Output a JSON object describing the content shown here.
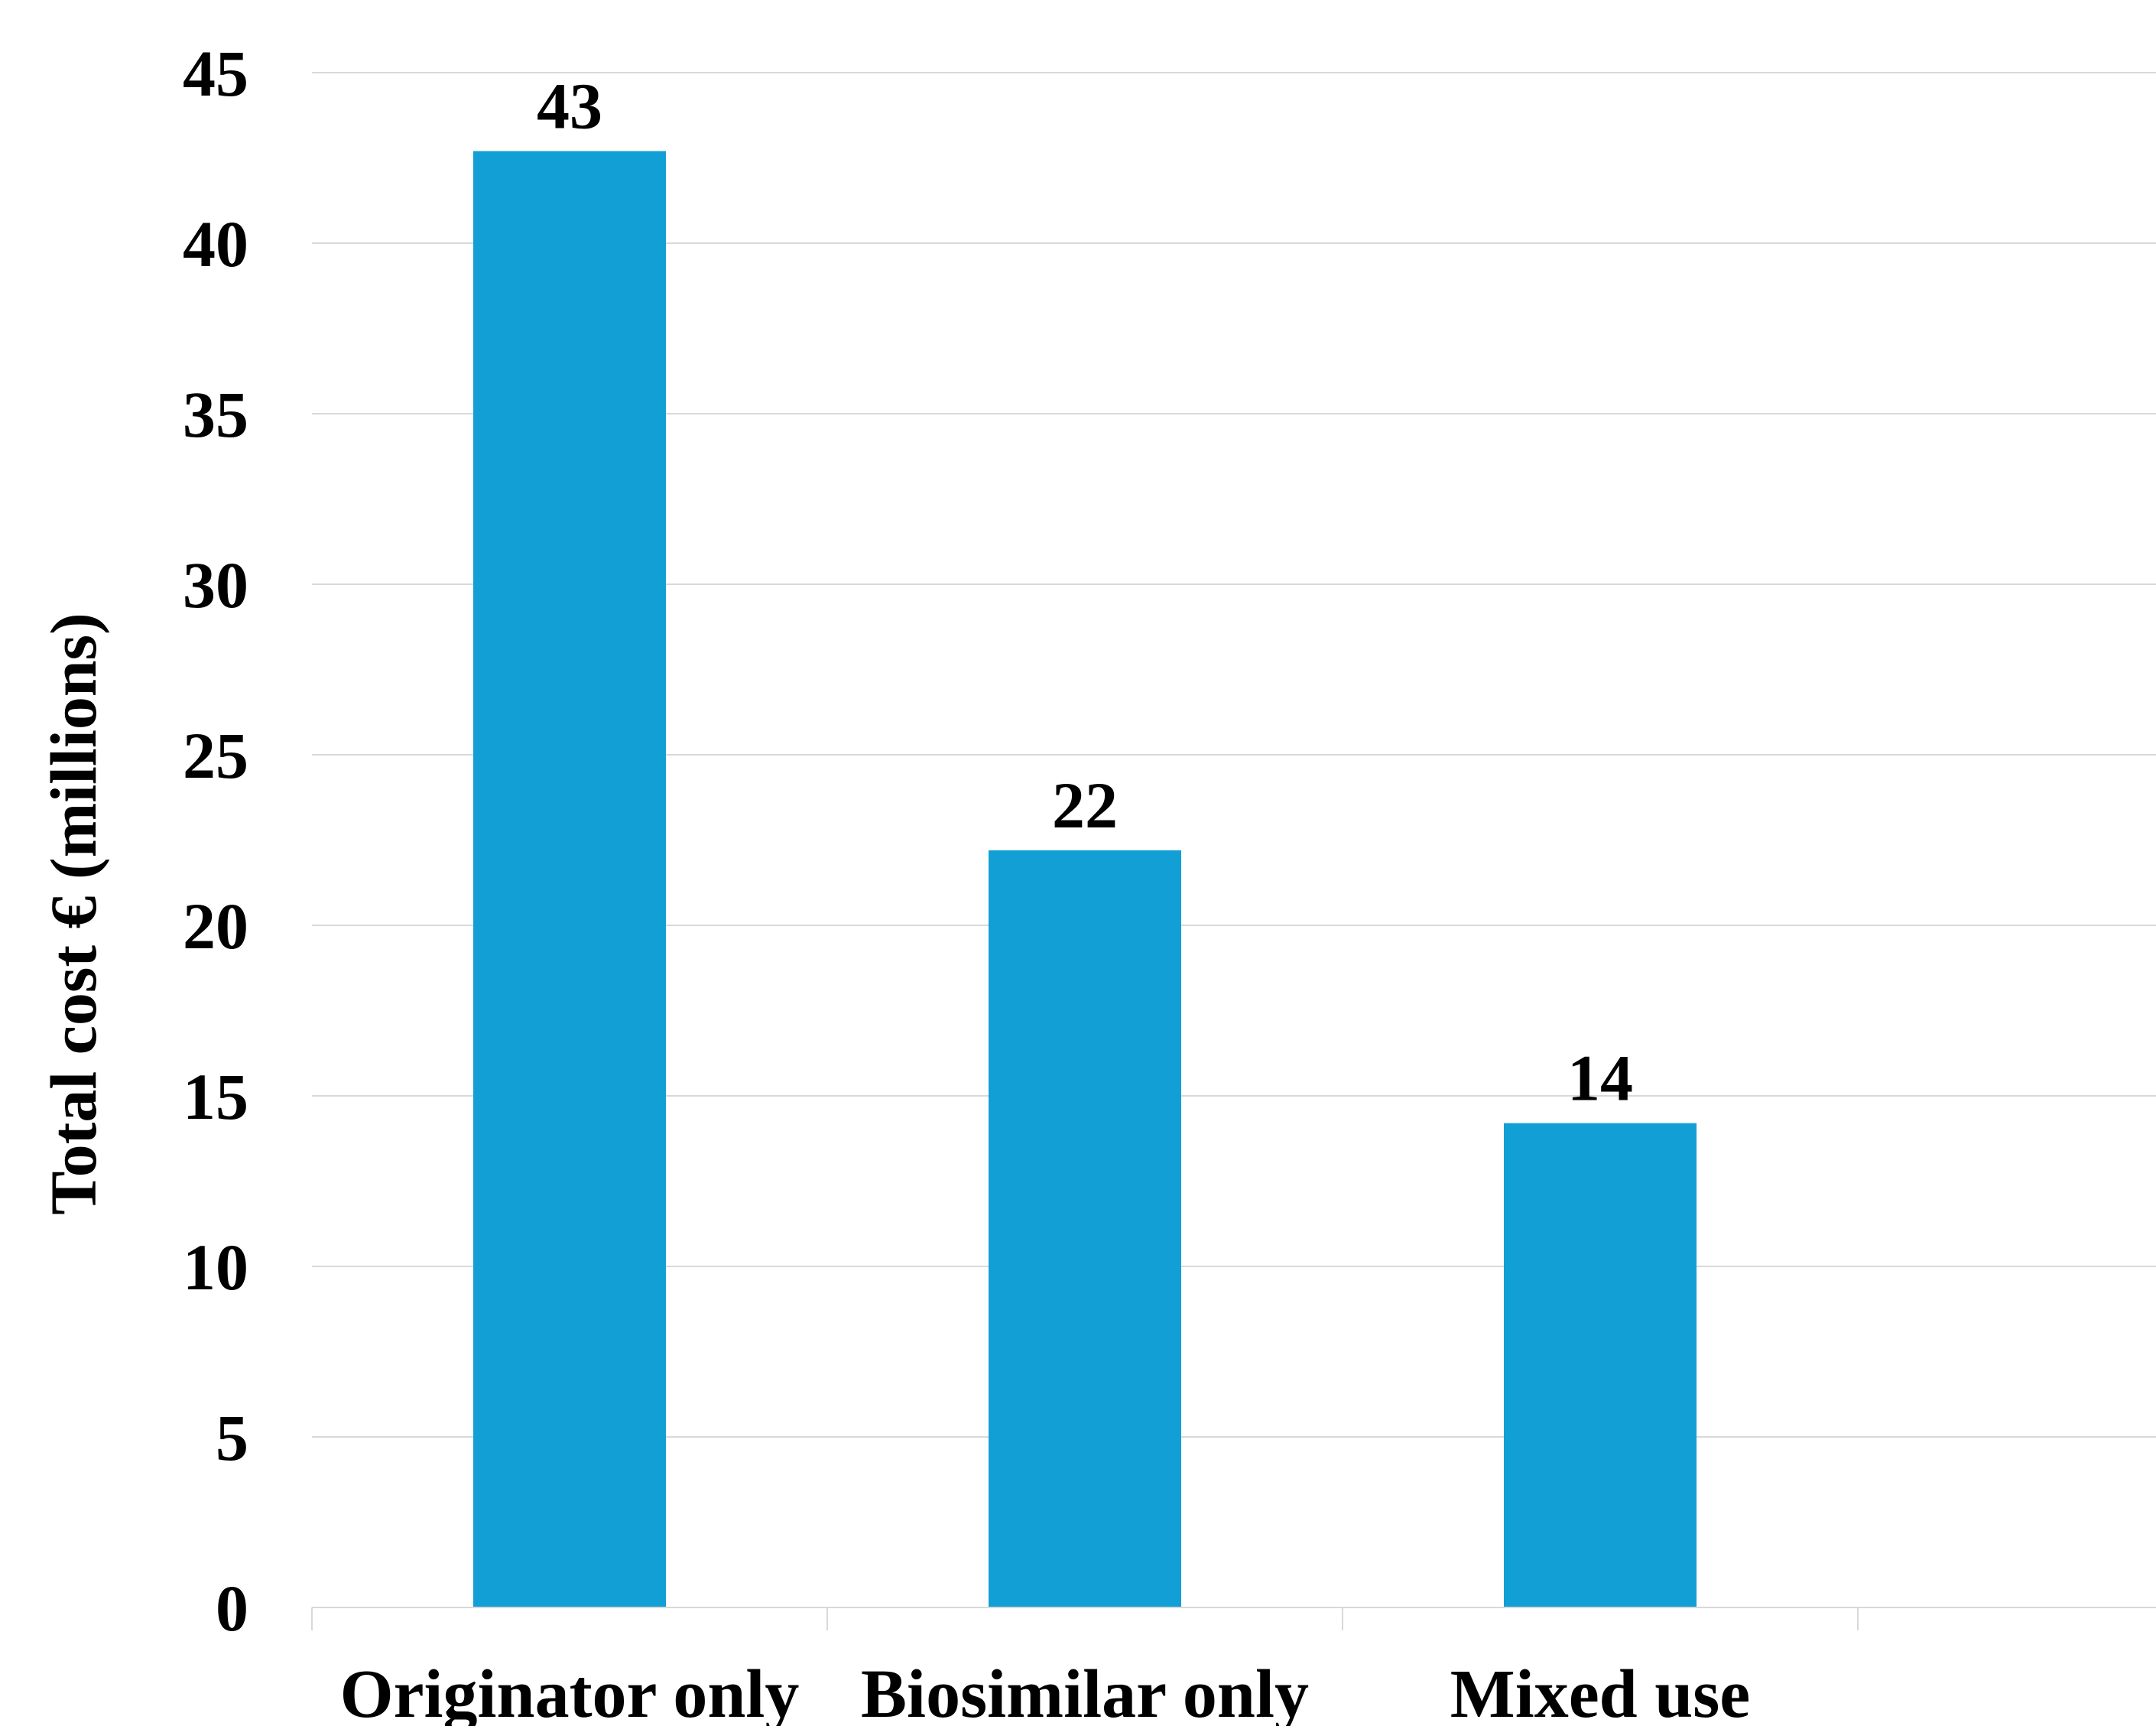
{
  "chart_data": {
    "type": "bar",
    "categories": [
      "Originator only",
      "Biosimilar only",
      "Mixed use"
    ],
    "values": [
      42.7,
      22.2,
      14.2
    ],
    "data_labels": [
      "43",
      "22",
      "14"
    ],
    "title": "",
    "xlabel": "",
    "ylabel": "Total cost € (millions)",
    "ylim": [
      0,
      45
    ],
    "yticks": [
      "0",
      "5",
      "10",
      "15",
      "20",
      "25",
      "30",
      "35",
      "40",
      "45"
    ],
    "grid": true,
    "legend": "none",
    "colors": {
      "bar": "#129fd6",
      "grid": "#d9d9d9",
      "axis": "#d9d9d9",
      "text": "#000000"
    }
  }
}
